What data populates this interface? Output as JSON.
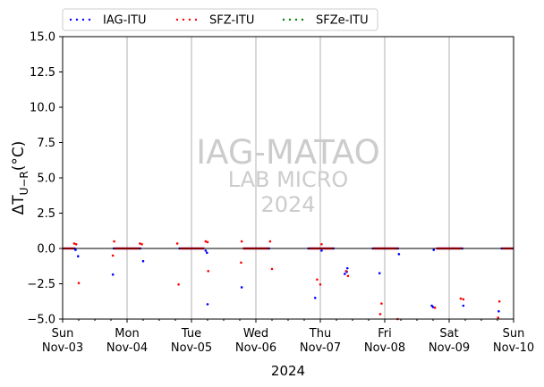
{
  "chart_data": {
    "type": "scatter",
    "ylabel": "ΔT_{U-R}(°C)",
    "xlabel": "2024",
    "ylim": [
      -5,
      15
    ],
    "yticks": [
      -5.0,
      -2.5,
      0.0,
      2.5,
      5.0,
      7.5,
      10.0,
      12.5,
      15.0
    ],
    "ytick_labels": [
      "−5.0",
      "−2.5",
      "0.0",
      "2.5",
      "5.0",
      "7.5",
      "10.0",
      "12.5",
      "15.0"
    ],
    "xlim_days": [
      0,
      7
    ],
    "xticks": [
      {
        "day": 0,
        "weekday": "Sun",
        "date": "Nov-03"
      },
      {
        "day": 1,
        "weekday": "Mon",
        "date": "Nov-04"
      },
      {
        "day": 2,
        "weekday": "Tue",
        "date": "Nov-05"
      },
      {
        "day": 3,
        "weekday": "Wed",
        "date": "Nov-06"
      },
      {
        "day": 4,
        "weekday": "Thu",
        "date": "Nov-07"
      },
      {
        "day": 5,
        "weekday": "Fri",
        "date": "Nov-08"
      },
      {
        "day": 6,
        "weekday": "Sat",
        "date": "Nov-09"
      },
      {
        "day": 7,
        "weekday": "Sun",
        "date": "Nov-10"
      }
    ],
    "grid_vertical": true,
    "reference_line": 0,
    "legend_position": "top",
    "watermark": {
      "line1": "IAG-MATAO",
      "line2": "LAB MICRO",
      "line3": "2024"
    },
    "series": [
      {
        "name": "IAG-ITU",
        "color": "#0000ff",
        "points": [
          [
            0.2,
            -0.1
          ],
          [
            0.24,
            -0.55
          ],
          [
            0.78,
            -1.85
          ],
          [
            1.25,
            -0.9
          ],
          [
            2.22,
            -0.15
          ],
          [
            2.24,
            -0.3
          ],
          [
            2.25,
            -3.95
          ],
          [
            2.78,
            -2.75
          ],
          [
            3.92,
            -3.5
          ],
          [
            4.02,
            -0.15
          ],
          [
            4.42,
            -1.4
          ],
          [
            4.41,
            -1.65
          ],
          [
            4.38,
            -1.8
          ],
          [
            4.92,
            -1.75
          ],
          [
            5.22,
            -0.4
          ],
          [
            5.76,
            -0.1
          ],
          [
            5.73,
            -4.05
          ],
          [
            5.75,
            -4.15
          ],
          [
            6.22,
            -4.05
          ],
          [
            6.77,
            -4.45
          ]
        ],
        "flat_segments": [
          [
            0.02,
            0.2
          ],
          [
            0.78,
            1.22
          ],
          [
            1.8,
            2.2
          ],
          [
            2.8,
            3.22
          ],
          [
            3.8,
            4.22
          ],
          [
            4.8,
            5.22
          ],
          [
            5.8,
            6.22
          ],
          [
            6.8,
            7.0
          ]
        ]
      },
      {
        "name": "SFZ-ITU",
        "color": "#ff0000",
        "points": [
          [
            0.18,
            0.35
          ],
          [
            0.21,
            0.3
          ],
          [
            0.25,
            -2.45
          ],
          [
            0.8,
            0.5
          ],
          [
            0.78,
            -0.5
          ],
          [
            1.2,
            0.35
          ],
          [
            1.23,
            0.3
          ],
          [
            1.78,
            0.35
          ],
          [
            1.8,
            -2.55
          ],
          [
            2.22,
            0.5
          ],
          [
            2.25,
            0.45
          ],
          [
            2.26,
            -1.6
          ],
          [
            2.78,
            0.5
          ],
          [
            2.77,
            -1.0
          ],
          [
            3.22,
            0.5
          ],
          [
            3.25,
            -1.45
          ],
          [
            3.95,
            -2.2
          ],
          [
            4.02,
            0.3
          ],
          [
            4.0,
            -2.55
          ],
          [
            4.4,
            -1.6
          ],
          [
            4.43,
            -1.95
          ],
          [
            4.95,
            -3.9
          ],
          [
            4.93,
            -4.65
          ],
          [
            5.2,
            -5.0
          ],
          [
            5.78,
            -4.2
          ],
          [
            6.18,
            -3.55
          ],
          [
            6.22,
            -3.6
          ],
          [
            6.78,
            -3.75
          ],
          [
            6.76,
            -4.9
          ]
        ],
        "flat_segments": [
          [
            0.0,
            0.18
          ],
          [
            0.8,
            1.2
          ],
          [
            1.82,
            2.2
          ],
          [
            2.8,
            3.2
          ],
          [
            3.82,
            4.2
          ],
          [
            4.82,
            5.2
          ],
          [
            5.8,
            6.2
          ],
          [
            6.82,
            7.0
          ]
        ]
      },
      {
        "name": "SFZe-ITU",
        "color": "#008000",
        "points": [],
        "flat_segments": []
      }
    ]
  }
}
